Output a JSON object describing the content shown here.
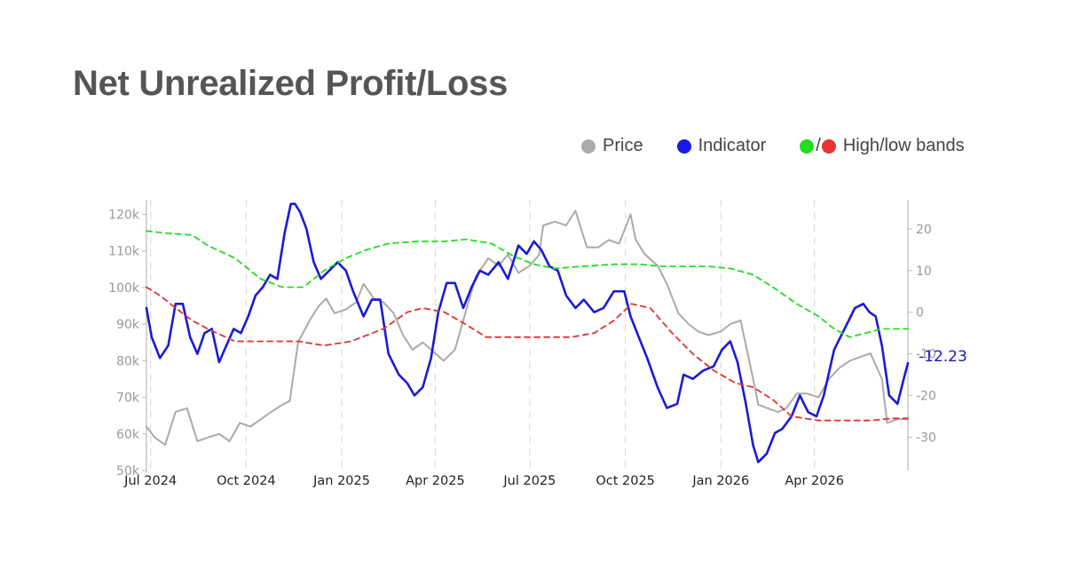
{
  "title": "Net Unrealized Profit/Loss",
  "legend": [
    {
      "label": "Price",
      "icon": "gray-dot",
      "colors": [
        "#aaaaaa"
      ]
    },
    {
      "label": "Indicator",
      "icon": "blue-dot",
      "colors": [
        "#1a1ae6"
      ]
    },
    {
      "label": "High/low bands",
      "icon": "green-red-dots",
      "colors": [
        "#22dd22",
        "#e53333"
      ],
      "separator": "/"
    }
  ],
  "chart_data": {
    "type": "line",
    "x_ticks": [
      "Jul 2024",
      "Oct 2024",
      "Jan 2025",
      "Apr 2025",
      "Jul 2025",
      "Oct 2025",
      "Jan 2026",
      "Apr 2026"
    ],
    "x_range": [
      "2024-06-27",
      "2026-06-30"
    ],
    "y_left": {
      "ticks": [
        "120k",
        "110k",
        "100k",
        "90k",
        "80k",
        "70k",
        "60k",
        "50k"
      ],
      "range": [
        50000,
        124000
      ],
      "label": ""
    },
    "y_right": {
      "ticks": [
        "20",
        "10",
        "0",
        "-10",
        "-20",
        "-30"
      ],
      "range": [
        -38,
        27
      ],
      "label": ""
    },
    "last_value_label": "-12.23",
    "grid": "vertical dashed at date ticks",
    "legend_position": "top-right",
    "series": [
      {
        "name": "Price",
        "axis": "left",
        "color": "#aaaaaa",
        "style": "solid",
        "x": [
          "2024-06-27",
          "2024-07-05",
          "2024-07-15",
          "2024-07-25",
          "2024-08-05",
          "2024-08-15",
          "2024-08-25",
          "2024-09-05",
          "2024-09-15",
          "2024-09-25",
          "2024-10-05",
          "2024-10-15",
          "2024-10-25",
          "2024-11-05",
          "2024-11-12",
          "2024-11-20",
          "2024-12-01",
          "2024-12-10",
          "2024-12-17",
          "2024-12-25",
          "2025-01-05",
          "2025-01-15",
          "2025-01-22",
          "2025-02-01",
          "2025-02-10",
          "2025-02-20",
          "2025-03-01",
          "2025-03-10",
          "2025-03-20",
          "2025-04-01",
          "2025-04-09",
          "2025-04-20",
          "2025-05-01",
          "2025-05-10",
          "2025-05-22",
          "2025-06-01",
          "2025-06-10",
          "2025-06-20",
          "2025-07-01",
          "2025-07-10",
          "2025-07-14",
          "2025-07-25",
          "2025-08-05",
          "2025-08-14",
          "2025-08-25",
          "2025-09-05",
          "2025-09-15",
          "2025-09-25",
          "2025-10-06",
          "2025-10-11",
          "2025-10-20",
          "2025-11-01",
          "2025-11-10",
          "2025-11-21",
          "2025-12-01",
          "2025-12-10",
          "2025-12-20",
          "2026-01-01",
          "2026-01-10",
          "2026-01-20",
          "2026-02-01",
          "2026-02-06",
          "2026-02-15",
          "2026-02-25",
          "2026-03-05",
          "2026-03-15",
          "2026-03-25",
          "2026-04-05",
          "2026-04-15",
          "2026-04-25",
          "2026-05-05",
          "2026-05-15",
          "2026-05-25",
          "2026-06-05",
          "2026-06-10",
          "2026-06-20",
          "2026-06-30"
        ],
        "y": [
          62000,
          59000,
          57000,
          66000,
          67000,
          58000,
          59000,
          60000,
          58000,
          63000,
          62000,
          64000,
          66000,
          68000,
          69000,
          85000,
          91000,
          95000,
          97000,
          93000,
          94000,
          96000,
          101000,
          97000,
          96000,
          93000,
          87000,
          83000,
          85000,
          82000,
          80000,
          83000,
          94000,
          103000,
          108000,
          106000,
          109000,
          104000,
          106000,
          109000,
          117000,
          118000,
          117000,
          121000,
          111000,
          111000,
          113000,
          112000,
          120000,
          113000,
          109000,
          106000,
          101000,
          93000,
          90000,
          88000,
          87000,
          88000,
          90000,
          91000,
          75000,
          68000,
          67000,
          66000,
          67000,
          71000,
          71000,
          70000,
          75000,
          78000,
          80000,
          81000,
          82000,
          75000,
          63000,
          64000,
          64000
        ]
      },
      {
        "name": "Indicator",
        "axis": "right",
        "color": "#1a1ad6",
        "style": "solid",
        "x": [
          "2024-06-27",
          "2024-07-02",
          "2024-07-10",
          "2024-07-18",
          "2024-07-25",
          "2024-08-01",
          "2024-08-08",
          "2024-08-15",
          "2024-08-22",
          "2024-08-29",
          "2024-09-05",
          "2024-09-12",
          "2024-09-19",
          "2024-09-26",
          "2024-10-03",
          "2024-10-10",
          "2024-10-17",
          "2024-10-24",
          "2024-10-31",
          "2024-11-07",
          "2024-11-13",
          "2024-11-17",
          "2024-11-22",
          "2024-11-28",
          "2024-12-05",
          "2024-12-12",
          "2024-12-20",
          "2024-12-28",
          "2025-01-05",
          "2025-01-12",
          "2025-01-22",
          "2025-01-30",
          "2025-02-07",
          "2025-02-15",
          "2025-02-25",
          "2025-03-05",
          "2025-03-12",
          "2025-03-20",
          "2025-03-28",
          "2025-04-04",
          "2025-04-12",
          "2025-04-20",
          "2025-04-28",
          "2025-05-06",
          "2025-05-14",
          "2025-05-22",
          "2025-06-01",
          "2025-06-10",
          "2025-06-20",
          "2025-06-28",
          "2025-07-05",
          "2025-07-12",
          "2025-07-20",
          "2025-07-28",
          "2025-08-05",
          "2025-08-14",
          "2025-08-22",
          "2025-09-01",
          "2025-09-10",
          "2025-09-20",
          "2025-09-30",
          "2025-10-06",
          "2025-10-14",
          "2025-10-22",
          "2025-11-01",
          "2025-11-10",
          "2025-11-20",
          "2025-11-26",
          "2025-12-05",
          "2025-12-15",
          "2025-12-25",
          "2026-01-02",
          "2026-01-10",
          "2026-01-17",
          "2026-01-25",
          "2026-02-01",
          "2026-02-06",
          "2026-02-14",
          "2026-02-22",
          "2026-03-01",
          "2026-03-10",
          "2026-03-18",
          "2026-03-26",
          "2026-04-03",
          "2026-04-10",
          "2026-04-20",
          "2026-04-30",
          "2026-05-10",
          "2026-05-18",
          "2026-05-24",
          "2026-05-30",
          "2026-06-05",
          "2026-06-12",
          "2026-06-20",
          "2026-06-26",
          "2026-06-30"
        ],
        "y": [
          1,
          -6,
          -11,
          -8,
          2,
          2,
          -6,
          -10,
          -5,
          -4,
          -12,
          -8,
          -4,
          -5,
          -1,
          4,
          6,
          9,
          8,
          19,
          26,
          26,
          24,
          20,
          12,
          8,
          10,
          12,
          10,
          5,
          -1,
          3,
          3,
          -10,
          -15,
          -17,
          -20,
          -18,
          -11,
          0,
          7,
          7,
          1,
          6,
          10,
          9,
          12,
          8,
          16,
          14,
          17,
          15,
          11,
          10,
          4,
          1,
          3,
          0,
          1,
          5,
          5,
          -1,
          -6,
          -11,
          -18,
          -23,
          -22,
          -15,
          -16,
          -14,
          -13,
          -9,
          -7,
          -12,
          -22,
          -32,
          -36,
          -34,
          -29,
          -28,
          -25,
          -20,
          -24,
          -25,
          -20,
          -9,
          -4,
          1,
          2,
          0,
          -1,
          -8,
          -20,
          -22,
          -16,
          -12.23
        ]
      },
      {
        "name": "",
        "axis": "right",
        "color": "#22dd22",
        "style": "dashed",
        "x": [
          "2024-06-27",
          "2024-07-15",
          "2024-08-10",
          "2024-08-25",
          "2024-09-20",
          "2024-10-15",
          "2024-11-05",
          "2024-11-25",
          "2024-12-15",
          "2025-01-05",
          "2025-01-25",
          "2025-02-15",
          "2025-03-15",
          "2025-04-10",
          "2025-05-01",
          "2025-05-25",
          "2025-06-15",
          "2025-07-05",
          "2025-07-25",
          "2025-08-20",
          "2025-09-20",
          "2025-10-15",
          "2025-11-05",
          "2025-12-01",
          "2025-12-20",
          "2026-01-10",
          "2026-02-01",
          "2026-02-20",
          "2026-03-15",
          "2026-04-05",
          "2026-04-20",
          "2026-05-05",
          "2026-05-20",
          "2026-06-05",
          "2026-06-30"
        ],
        "y": [
          19.5,
          19,
          18.5,
          16,
          13,
          8,
          6,
          6,
          10,
          13,
          15,
          16.5,
          17,
          17,
          17.5,
          16.5,
          13.5,
          11.5,
          10.5,
          11,
          11.5,
          11.5,
          11,
          11,
          11,
          10.5,
          9,
          6,
          2,
          -1,
          -4,
          -6,
          -5,
          -4,
          -4
        ]
      },
      {
        "name": "",
        "axis": "right",
        "color": "#e03333",
        "style": "dashed",
        "x": [
          "2024-06-27",
          "2024-07-10",
          "2024-07-25",
          "2024-08-10",
          "2024-08-25",
          "2024-09-20",
          "2024-10-20",
          "2024-11-20",
          "2024-12-15",
          "2025-01-10",
          "2025-02-10",
          "2025-03-05",
          "2025-03-20",
          "2025-04-10",
          "2025-05-01",
          "2025-05-20",
          "2025-06-15",
          "2025-07-10",
          "2025-08-10",
          "2025-09-01",
          "2025-09-20",
          "2025-10-07",
          "2025-10-25",
          "2025-11-15",
          "2025-12-05",
          "2025-12-25",
          "2026-01-15",
          "2026-02-01",
          "2026-02-20",
          "2026-03-10",
          "2026-04-05",
          "2026-04-30",
          "2026-05-25",
          "2026-06-15",
          "2026-06-30"
        ],
        "y": [
          6,
          4,
          1,
          -2,
          -4,
          -7,
          -7,
          -7,
          -8,
          -7,
          -4,
          0,
          1,
          0,
          -3,
          -6,
          -6,
          -6,
          -6,
          -5,
          -2,
          2,
          1,
          -5,
          -10,
          -14,
          -17,
          -18,
          -21,
          -25,
          -26,
          -26,
          -26,
          -25.5,
          -25.5
        ]
      }
    ]
  }
}
